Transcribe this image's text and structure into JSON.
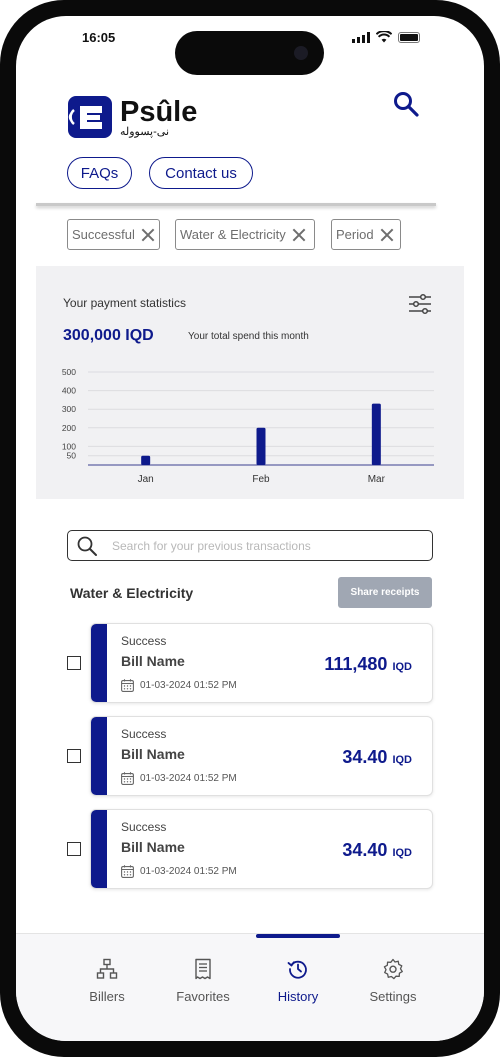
{
  "status_bar": {
    "time": "16:05"
  },
  "brand": {
    "name": "Psûle",
    "subtitle": "نی-پسووله"
  },
  "header": {
    "faqs_label": "FAQs",
    "contact_label": "Contact us"
  },
  "filters": [
    {
      "label": "Successful"
    },
    {
      "label": "Water & Electricity"
    },
    {
      "label": "Period"
    }
  ],
  "stats": {
    "title": "Your payment statistics",
    "amount": "300,000 IQD",
    "amount_note": "Your total spend this month"
  },
  "chart_data": {
    "type": "bar",
    "categories": [
      "Jan",
      "Feb",
      "Mar"
    ],
    "values": [
      50,
      200,
      330
    ],
    "ylim": [
      0,
      500
    ],
    "yticks": [
      50,
      100,
      200,
      300,
      400,
      500
    ],
    "grid": true,
    "bar_color": "#0e1a8c"
  },
  "search": {
    "placeholder": "Search for your previous transactions"
  },
  "section": {
    "title": "Water & Electricity",
    "share_label": "Share receipts"
  },
  "transactions": [
    {
      "status": "Success",
      "name": "Bill Name",
      "date": "01-03-2024 01:52 PM",
      "amount": "111,480",
      "currency": "IQD"
    },
    {
      "status": "Success",
      "name": "Bill Name",
      "date": "01-03-2024 01:52 PM",
      "amount": "34.40",
      "currency": "IQD"
    },
    {
      "status": "Success",
      "name": "Bill Name",
      "date": "01-03-2024 01:52 PM",
      "amount": "34.40",
      "currency": "IQD"
    }
  ],
  "tabs": [
    {
      "label": "Billers",
      "icon": "sitemap-icon",
      "active": false
    },
    {
      "label": "Favorites",
      "icon": "receipt-icon",
      "active": false
    },
    {
      "label": "History",
      "icon": "history-icon",
      "active": true
    },
    {
      "label": "Settings",
      "icon": "gear-icon",
      "active": false
    }
  ],
  "colors": {
    "primary": "#0e1a8c",
    "panel": "#f1f1f3",
    "disabled_button": "#a0a7b3"
  }
}
